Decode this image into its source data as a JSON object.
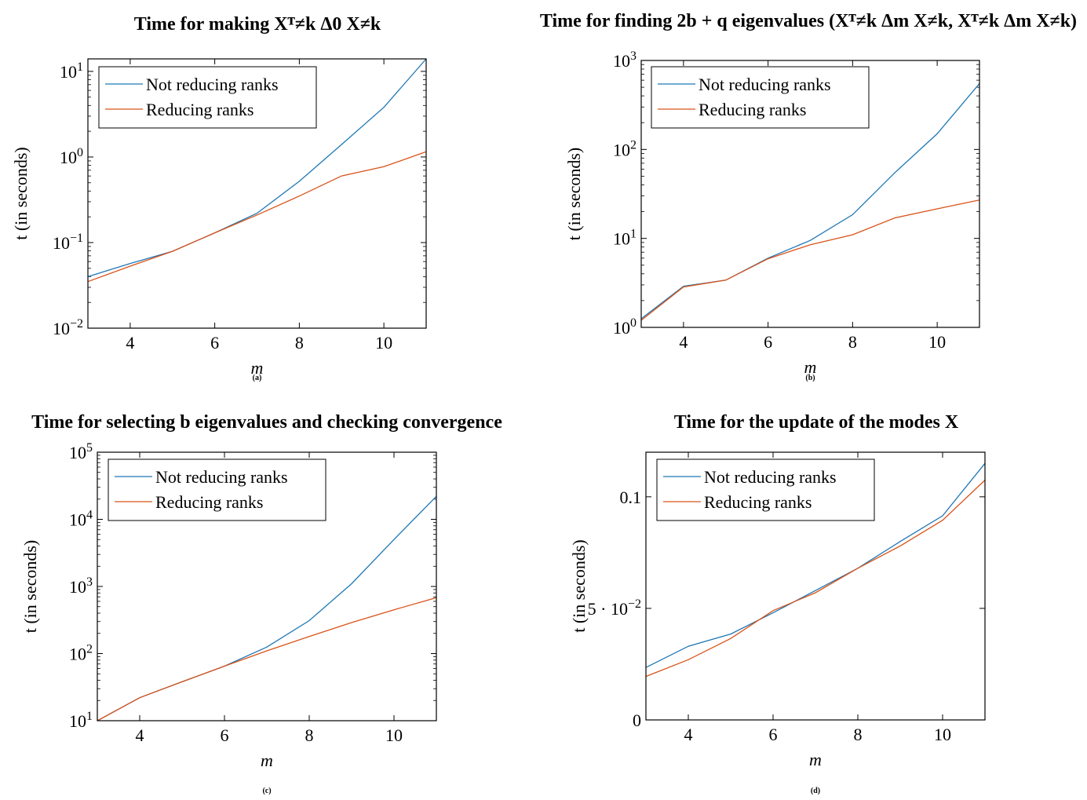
{
  "chart_data": [
    {
      "type": "line",
      "caption": "(a)",
      "title": "Time for making Xᵀ≠k Δ0 X≠k",
      "xlabel": "m",
      "ylabel": "t (in seconds)",
      "yscale": "log",
      "xlim": [
        3,
        11
      ],
      "ylim": [
        0.01,
        14
      ],
      "xticks": [
        4,
        6,
        8,
        10
      ],
      "yticks": [
        {
          "value": 0.01,
          "base": "10",
          "exp": "−2"
        },
        {
          "value": 0.1,
          "base": "10",
          "exp": "−1"
        },
        {
          "value": 1,
          "base": "10",
          "exp": "0"
        },
        {
          "value": 10,
          "base": "10",
          "exp": "1"
        }
      ],
      "legend": "top-left",
      "x": [
        3,
        4,
        5,
        6,
        7,
        8,
        9,
        10,
        11
      ],
      "series": [
        {
          "name": "Not reducing ranks",
          "color": "#1f77b4",
          "values": [
            0.04,
            0.057,
            0.079,
            0.13,
            0.22,
            0.52,
            1.4,
            3.8,
            14
          ]
        },
        {
          "name": "Reducing ranks",
          "color": "#d95319",
          "values": [
            0.035,
            0.053,
            0.079,
            0.13,
            0.21,
            0.35,
            0.6,
            0.77,
            1.15
          ]
        }
      ]
    },
    {
      "type": "line",
      "caption": "(b)",
      "title": "Time for finding 2b + q eigenvalues (Xᵀ≠k Δm X≠k, Xᵀ≠k Δm X≠k)",
      "xlabel": "m",
      "ylabel": "t (in seconds)",
      "yscale": "log",
      "xlim": [
        3,
        11
      ],
      "ylim": [
        1,
        1000
      ],
      "xticks": [
        4,
        6,
        8,
        10
      ],
      "yticks": [
        {
          "value": 1,
          "base": "10",
          "exp": "0"
        },
        {
          "value": 10,
          "base": "10",
          "exp": "1"
        },
        {
          "value": 100,
          "base": "10",
          "exp": "2"
        },
        {
          "value": 1000,
          "base": "10",
          "exp": "3"
        }
      ],
      "legend": "top-left",
      "x": [
        3,
        4,
        5,
        6,
        7,
        8,
        9,
        10,
        11
      ],
      "series": [
        {
          "name": "Not reducing ranks",
          "color": "#1f77b4",
          "values": [
            1.25,
            2.9,
            3.4,
            6.0,
            9.5,
            18.5,
            55,
            150,
            550
          ]
        },
        {
          "name": "Reducing ranks",
          "color": "#d95319",
          "values": [
            1.2,
            2.85,
            3.4,
            5.9,
            8.5,
            11,
            17,
            21.5,
            27
          ]
        }
      ]
    },
    {
      "type": "line",
      "caption": "(c)",
      "title": "Time for selecting b eigenvalues and checking convergence",
      "xlabel": "m",
      "ylabel": "t (in seconds)",
      "yscale": "log",
      "xlim": [
        3,
        11
      ],
      "ylim": [
        10,
        100000
      ],
      "xticks": [
        4,
        6,
        8,
        10
      ],
      "yticks": [
        {
          "value": 10,
          "base": "10",
          "exp": "1"
        },
        {
          "value": 100,
          "base": "10",
          "exp": "2"
        },
        {
          "value": 1000,
          "base": "10",
          "exp": "3"
        },
        {
          "value": 10000,
          "base": "10",
          "exp": "4"
        },
        {
          "value": 100000,
          "base": "10",
          "exp": "5"
        }
      ],
      "legend": "top-left",
      "x": [
        3,
        4,
        5,
        6,
        7,
        8,
        9,
        10,
        11
      ],
      "series": [
        {
          "name": "Not reducing ranks",
          "color": "#1f77b4",
          "values": [
            10,
            22,
            38,
            65,
            125,
            310,
            1100,
            5000,
            22000
          ]
        },
        {
          "name": "Reducing ranks",
          "color": "#d95319",
          "values": [
            10,
            22,
            38,
            65,
            110,
            180,
            290,
            450,
            680
          ]
        }
      ]
    },
    {
      "type": "line",
      "caption": "(d)",
      "title": "Time for the update of the modes X",
      "xlabel": "m",
      "ylabel": "t (in seconds)",
      "yscale": "linear",
      "xlim": [
        3,
        11
      ],
      "ylim": [
        0,
        0.12
      ],
      "xticks": [
        4,
        6,
        8,
        10
      ],
      "yticks": [
        {
          "value": 0,
          "text": "0"
        },
        {
          "value": 0.05,
          "base": "5 · 10",
          "exp": "−2"
        },
        {
          "value": 0.1,
          "text": "0.1"
        }
      ],
      "legend": "top-left",
      "x": [
        3,
        4,
        5,
        6,
        7,
        8,
        9,
        10,
        11
      ],
      "series": [
        {
          "name": "Not reducing ranks",
          "color": "#1f77b4",
          "values": [
            0.0235,
            0.033,
            0.0385,
            0.048,
            0.058,
            0.068,
            0.08,
            0.0915,
            0.115
          ]
        },
        {
          "name": "Reducing ranks",
          "color": "#d95319",
          "values": [
            0.0195,
            0.027,
            0.0365,
            0.049,
            0.057,
            0.068,
            0.078,
            0.0895,
            0.1075
          ]
        }
      ]
    }
  ]
}
